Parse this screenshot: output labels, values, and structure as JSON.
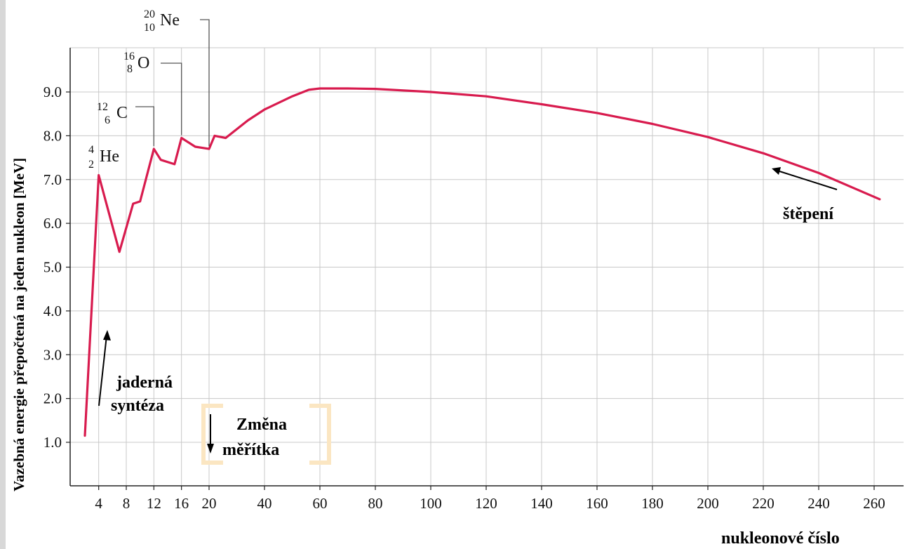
{
  "chart_data": {
    "type": "line",
    "xlabel": "nukleonové číslo",
    "ylabel": "Vazebná energie přepočtená na jeden nukleon [MeV]",
    "y_ticks": [
      "1.0",
      "2.0",
      "3.0",
      "4.0",
      "5.0",
      "6.0",
      "7.0",
      "8.0",
      "9.0"
    ],
    "x_ticks": [
      "4",
      "8",
      "12",
      "16",
      "20",
      "40",
      "60",
      "80",
      "100",
      "120",
      "140",
      "160",
      "180",
      "200",
      "220",
      "240",
      "260"
    ],
    "ylim": [
      0,
      10
    ],
    "x_scale": "broken (1–20 expanded, 20–260 compressed)",
    "grid": true,
    "line_color": "#d81b4e",
    "series": [
      {
        "x": [
          2,
          4,
          7,
          9,
          10,
          12,
          13,
          15,
          16,
          18,
          20,
          22,
          26,
          34,
          40,
          50,
          56,
          60,
          70,
          80,
          100,
          120,
          140,
          160,
          180,
          200,
          220,
          240,
          262
        ],
        "values": [
          1.15,
          7.1,
          5.35,
          6.45,
          6.5,
          7.7,
          7.45,
          7.35,
          7.95,
          7.75,
          7.7,
          8.0,
          7.95,
          8.35,
          8.6,
          8.9,
          9.05,
          9.08,
          9.08,
          9.07,
          9.0,
          8.9,
          8.72,
          8.52,
          8.27,
          7.97,
          7.6,
          7.15,
          6.55
        ]
      }
    ],
    "isotopes": [
      {
        "mass": "4",
        "atomic": "2",
        "symbol": "He"
      },
      {
        "mass": "12",
        "atomic": "6",
        "symbol": "C"
      },
      {
        "mass": "16",
        "atomic": "8",
        "symbol": "O"
      },
      {
        "mass": "20",
        "atomic": "10",
        "symbol": "Ne"
      }
    ],
    "annotations": {
      "fission": "štěpení",
      "fusion_line1": "jaderná",
      "fusion_line2": "syntéza",
      "scale_line1": "Změna",
      "scale_line2": "měřítka"
    }
  }
}
